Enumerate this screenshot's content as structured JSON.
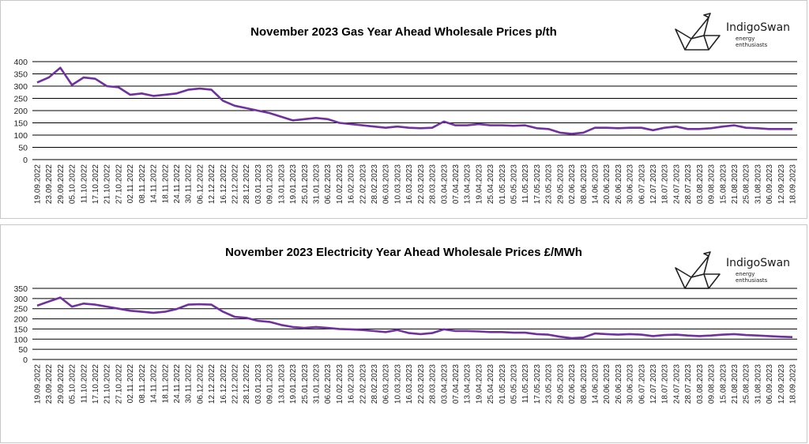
{
  "brand": {
    "name": "IndigoSwan",
    "tagline": "energy enthusiasts"
  },
  "colors": {
    "line": "#7030a0",
    "grid": "#000000",
    "axis_text": "#222222"
  },
  "chart_data": [
    {
      "type": "line",
      "title": "November 2023 Gas Year Ahead Wholesale Prices p/th",
      "ylim": [
        0,
        400
      ],
      "yticks": [
        0,
        50,
        100,
        150,
        200,
        250,
        300,
        350,
        400
      ],
      "categories": [
        "19.09.2022",
        "23.09.2022",
        "29.09.2022",
        "05.10.2022",
        "11.10.2022",
        "17.10.2022",
        "21.10.2022",
        "27.10.2022",
        "02.11.2022",
        "08.11.2022",
        "14.11.2022",
        "18.11.2022",
        "24.11.2022",
        "30.11.2022",
        "06.12.2022",
        "12.12.2022",
        "16.12.2022",
        "22.12.2022",
        "28.12.2022",
        "03.01.2023",
        "09.01.2023",
        "13.01.2023",
        "19.01.2023",
        "25.01.2023",
        "31.01.2023",
        "06.02.2023",
        "10.02.2023",
        "16.02.2023",
        "22.02.2023",
        "28.02.2023",
        "06.03.2023",
        "10.03.2023",
        "16.03.2023",
        "22.03.2023",
        "28.03.2023",
        "03.04.2023",
        "07.04.2023",
        "13.04.2023",
        "19.04.2023",
        "25.04.2023",
        "01.05.2023",
        "05.05.2023",
        "11.05.2023",
        "17.05.2023",
        "23.05.2023",
        "29.05.2023",
        "02.06.2023",
        "08.06.2023",
        "14.06.2023",
        "20.06.2023",
        "26.06.2023",
        "30.06.2023",
        "06.07.2023",
        "12.07.2023",
        "18.07.2023",
        "24.07.2023",
        "28.07.2023",
        "03.08.2023",
        "09.08.2023",
        "15.08.2023",
        "21.08.2023",
        "25.08.2023",
        "31.08.2023",
        "06.09.2023",
        "12.09.2023",
        "18.09.2023"
      ],
      "series": [
        {
          "values": [
            315,
            335,
            375,
            305,
            335,
            330,
            300,
            295,
            265,
            270,
            260,
            265,
            270,
            285,
            290,
            285,
            240,
            220,
            210,
            200,
            190,
            175,
            160,
            165,
            170,
            165,
            150,
            145,
            140,
            135,
            130,
            135,
            130,
            128,
            130,
            155,
            140,
            140,
            145,
            140,
            140,
            138,
            140,
            128,
            125,
            110,
            105,
            110,
            130,
            130,
            128,
            130,
            130,
            120,
            130,
            135,
            125,
            125,
            128,
            135,
            140,
            130,
            128,
            125,
            125,
            125
          ]
        }
      ]
    },
    {
      "type": "line",
      "title": "November 2023 Electricity Year Ahead Wholesale Prices £/MWh",
      "ylim": [
        0,
        350
      ],
      "yticks": [
        0,
        50,
        100,
        150,
        200,
        250,
        300,
        350
      ],
      "categories": [
        "19.09.2022",
        "23.09.2022",
        "29.09.2022",
        "05.10.2022",
        "11.10.2022",
        "17.10.2022",
        "21.10.2022",
        "27.10.2022",
        "02.11.2022",
        "08.11.2022",
        "14.11.2022",
        "18.11.2022",
        "24.11.2022",
        "30.11.2022",
        "06.12.2022",
        "12.12.2022",
        "16.12.2022",
        "22.12.2022",
        "28.12.2022",
        "03.01.2023",
        "09.01.2023",
        "13.01.2023",
        "19.01.2023",
        "25.01.2023",
        "31.01.2023",
        "06.02.2023",
        "10.02.2023",
        "16.02.2023",
        "22.02.2023",
        "28.02.2023",
        "06.03.2023",
        "10.03.2023",
        "16.03.2023",
        "22.03.2023",
        "28.03.2023",
        "03.04.2023",
        "07.04.2023",
        "13.04.2023",
        "19.04.2023",
        "25.04.2023",
        "01.05.2023",
        "05.05.2023",
        "11.05.2023",
        "17.05.2023",
        "23.05.2023",
        "29.05.2023",
        "02.06.2023",
        "08.06.2023",
        "14.06.2023",
        "20.06.2023",
        "26.06.2023",
        "30.06.2023",
        "06.07.2023",
        "12.07.2023",
        "18.07.2023",
        "24.07.2023",
        "28.07.2023",
        "03.08.2023",
        "09.08.2023",
        "15.08.2023",
        "21.08.2023",
        "25.08.2023",
        "31.08.2023",
        "06.09.2023",
        "12.09.2023",
        "18.09.2023"
      ],
      "series": [
        {
          "values": [
            265,
            285,
            305,
            260,
            275,
            270,
            260,
            250,
            240,
            235,
            230,
            235,
            248,
            270,
            272,
            270,
            235,
            210,
            205,
            190,
            185,
            170,
            160,
            155,
            160,
            155,
            150,
            148,
            145,
            140,
            135,
            145,
            130,
            125,
            130,
            148,
            140,
            140,
            138,
            135,
            135,
            132,
            132,
            125,
            122,
            112,
            105,
            108,
            128,
            125,
            122,
            125,
            122,
            115,
            120,
            122,
            118,
            115,
            118,
            122,
            125,
            120,
            118,
            115,
            112,
            110
          ]
        }
      ]
    }
  ]
}
